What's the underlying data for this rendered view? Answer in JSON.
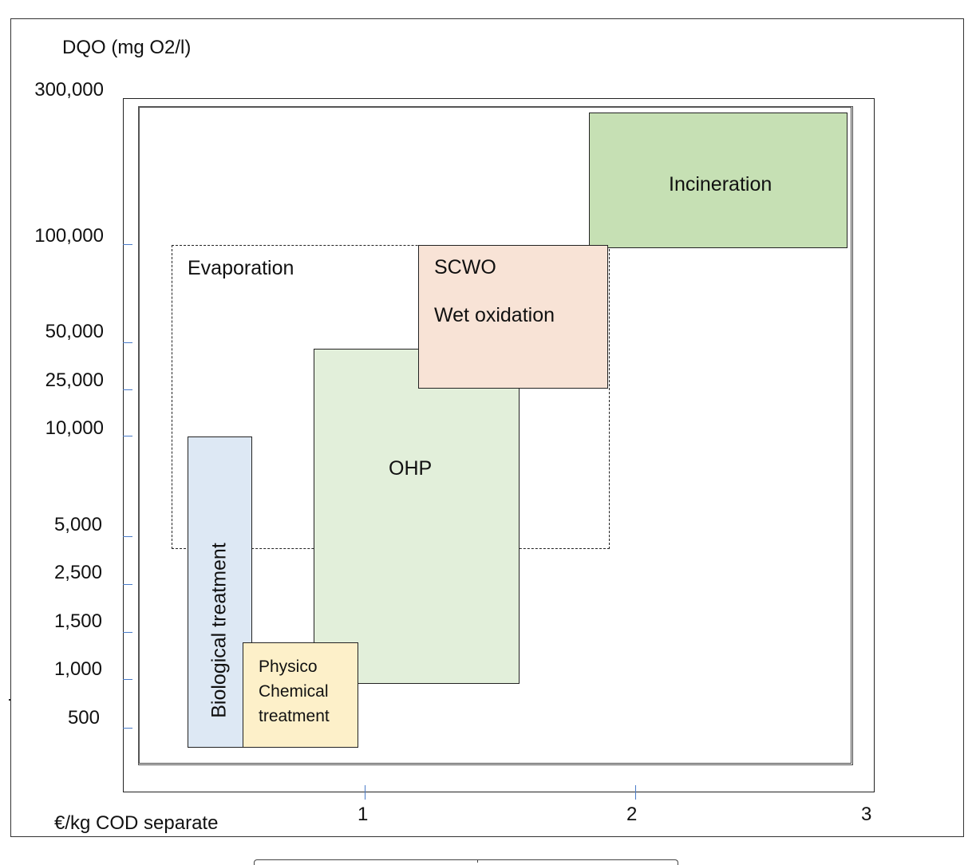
{
  "y_axis": {
    "label": "DQO (mg O2/l)",
    "ticks": [
      "300,000",
      "100,000",
      "50,000",
      "25,000",
      "10,000",
      "5,000",
      "2,500",
      "1,500",
      "1,000",
      "500"
    ]
  },
  "x_axis": {
    "label": "€/kg COD separate",
    "ticks": [
      "1",
      "2",
      "3"
    ]
  },
  "regions": {
    "evaporation": "Evaporation",
    "scwo": "SCWO",
    "wet_oxidation": "Wet oxidation",
    "ohp": "OHP",
    "incineration": "Incineration",
    "biological": "Biological treatment",
    "physico_lines": [
      "Physico",
      "Chemical",
      "treatment"
    ]
  },
  "colors": {
    "biological": "#dde8f4",
    "physico": "#fdf0c9",
    "ohp": "#e2efda",
    "scwo": "#f8e3d6",
    "incineration": "#c6e0b4",
    "tick": "#4a7cc9"
  }
}
